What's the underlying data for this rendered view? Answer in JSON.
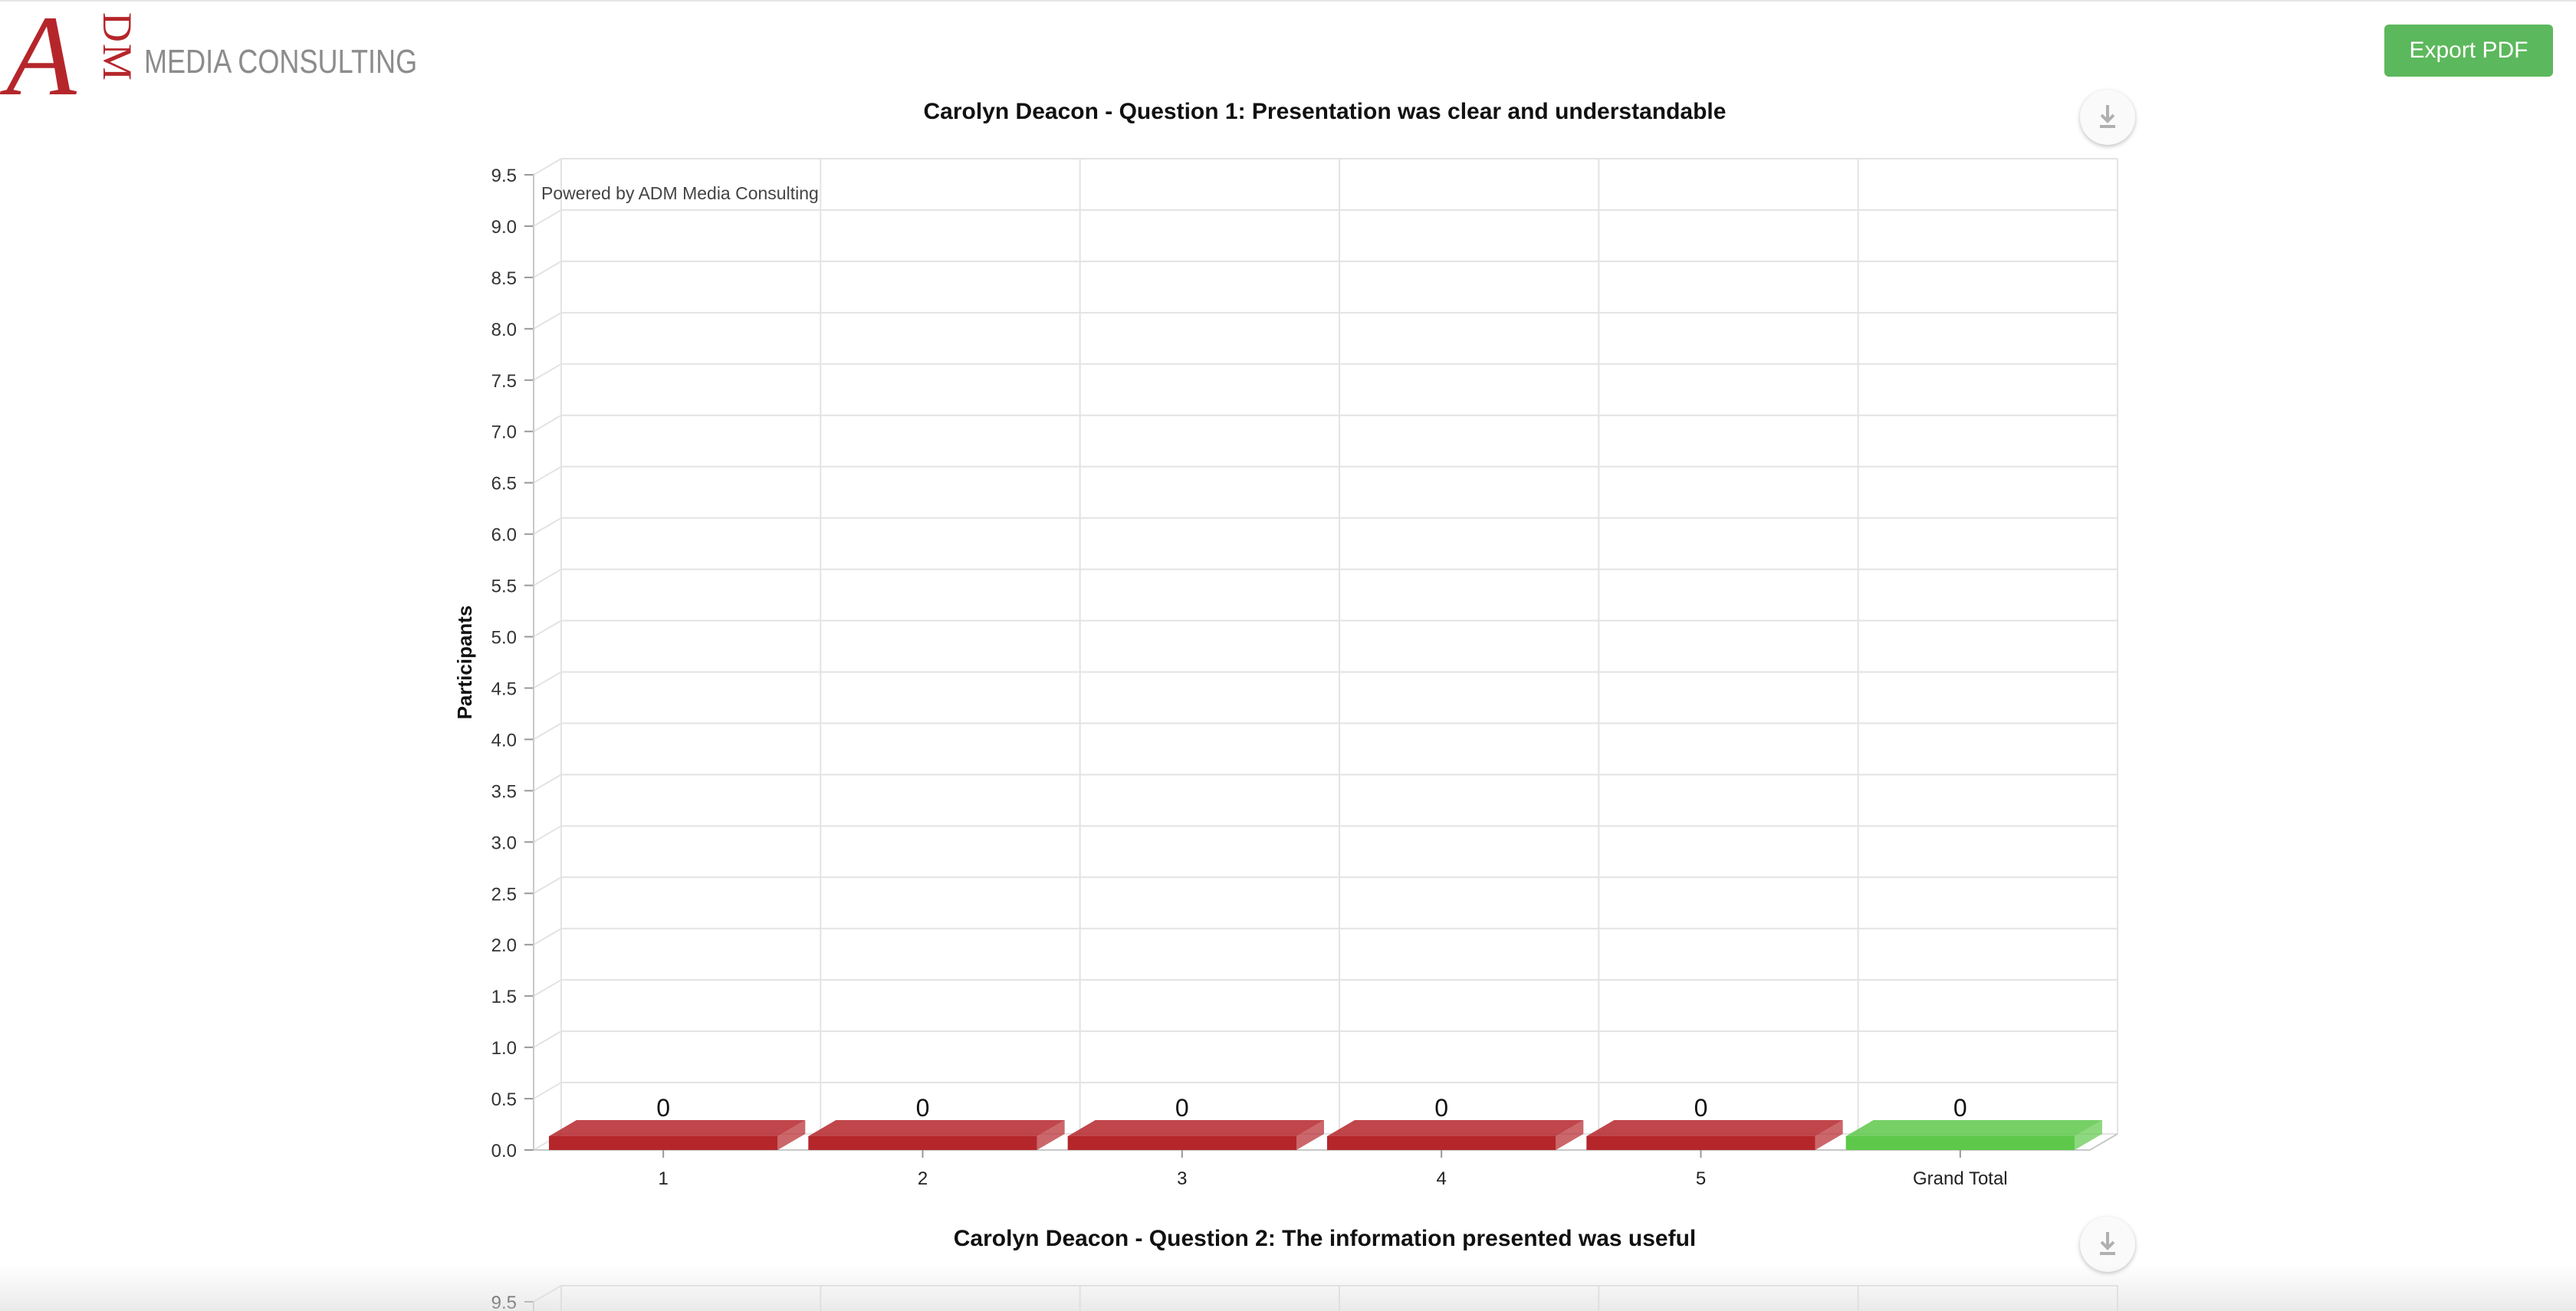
{
  "brand": {
    "logo_letter": "A",
    "logo_letters_side": "DM",
    "name": "MEDIA CONSULTING",
    "primary_color": "#b5262b",
    "text_color": "#8c8c8c"
  },
  "toolbar": {
    "export_label": "Export PDF",
    "export_color": "#5cb85c"
  },
  "chart_data": [
    {
      "type": "bar",
      "title": "Carolyn Deacon - Question 1: Presentation was clear and understandable",
      "credit": "Powered by ADM Media Consulting",
      "ylabel": "Participants",
      "xlabel": "",
      "ylim": [
        0,
        9.5
      ],
      "y_ticks": [
        "0.0",
        "0.5",
        "1.0",
        "1.5",
        "2.0",
        "2.5",
        "3.0",
        "3.5",
        "4.0",
        "4.5",
        "5.0",
        "5.5",
        "6.0",
        "6.5",
        "7.0",
        "7.5",
        "8.0",
        "8.5",
        "9.0",
        "9.5"
      ],
      "categories": [
        "1",
        "2",
        "3",
        "4",
        "5",
        "Grand Total"
      ],
      "values": [
        0,
        0,
        0,
        0,
        0,
        0
      ],
      "bar_colors": [
        "#b5262b",
        "#b5262b",
        "#b5262b",
        "#b5262b",
        "#b5262b",
        "#5ec84a"
      ],
      "grid": true,
      "style": "3d",
      "download_icon": "download-icon"
    },
    {
      "type": "bar",
      "title": "Carolyn Deacon - Question 2: The information presented was useful",
      "y_ticks_visible": [
        "9.5"
      ],
      "download_icon": "download-icon"
    }
  ]
}
